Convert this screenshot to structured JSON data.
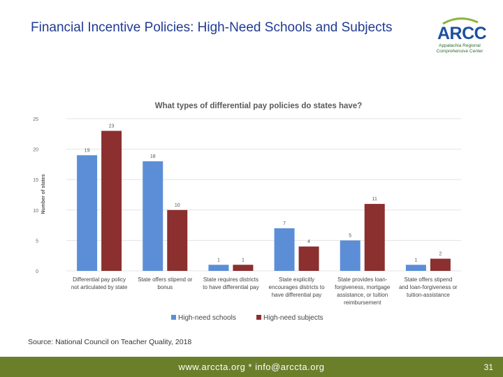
{
  "slide": {
    "title": "Financial Incentive Policies: High-Need Schools and Subjects",
    "source": "Source: National Council on Teacher Quality, 2018"
  },
  "logo": {
    "name": "ARCC",
    "line1": "Appalachia Regional",
    "line2": "Comprehensive Center"
  },
  "footer": {
    "contact": "www.arccta.org  *  info@arccta.org",
    "page_number": "31"
  },
  "colors": {
    "high_need_schools": "#5b8ed6",
    "high_need_subjects": "#8b2f2f",
    "title_blue": "#1f3a93",
    "footer_green": "#6b7f2a"
  },
  "chart_data": {
    "type": "bar",
    "title": "What types of differential pay policies do states have?",
    "xlabel": "",
    "ylabel": "Number of states",
    "ylim": [
      0,
      25
    ],
    "yticks": [
      0,
      5,
      10,
      15,
      20,
      25
    ],
    "grid": true,
    "legend_position": "bottom",
    "categories": [
      [
        "Differential pay policy",
        "not articulated by state"
      ],
      [
        "State offers stipend or",
        "bonus"
      ],
      [
        "State requires districts",
        "to have differential pay"
      ],
      [
        "State explicitly",
        "encourages districts to",
        "have differential pay"
      ],
      [
        "State provides loan-",
        "forgiveness, mortgage",
        "assistance, or tuition",
        "reimbursement"
      ],
      [
        "State offers stipend",
        "and loan-forgiveness or",
        "tuition-assistance"
      ]
    ],
    "series": [
      {
        "name": "High-need schools",
        "values": [
          19,
          18,
          1,
          7,
          5,
          1
        ]
      },
      {
        "name": "High-need subjects",
        "values": [
          23,
          10,
          1,
          4,
          11,
          2
        ]
      }
    ]
  }
}
